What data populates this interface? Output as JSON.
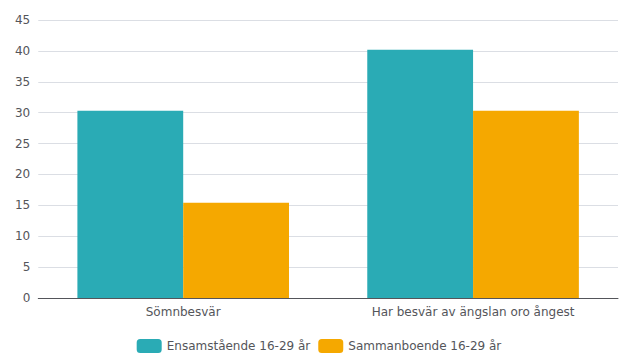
{
  "chart_data": {
    "type": "bar",
    "categories": [
      "Sömnbesvär",
      "Har besvär av ängslan oro ångest"
    ],
    "series": [
      {
        "name": "Ensamstående 16-29 år",
        "color": "#2AABB5",
        "values": [
          30.3,
          40.2
        ]
      },
      {
        "name": "Sammanboende 16-29 år",
        "color": "#F5A800",
        "values": [
          15.4,
          30.3
        ]
      }
    ],
    "ylim": [
      0,
      45
    ],
    "yticks": [
      0,
      5,
      10,
      15,
      20,
      25,
      30,
      35,
      40,
      45
    ],
    "grid": true,
    "legend": "bottom"
  }
}
